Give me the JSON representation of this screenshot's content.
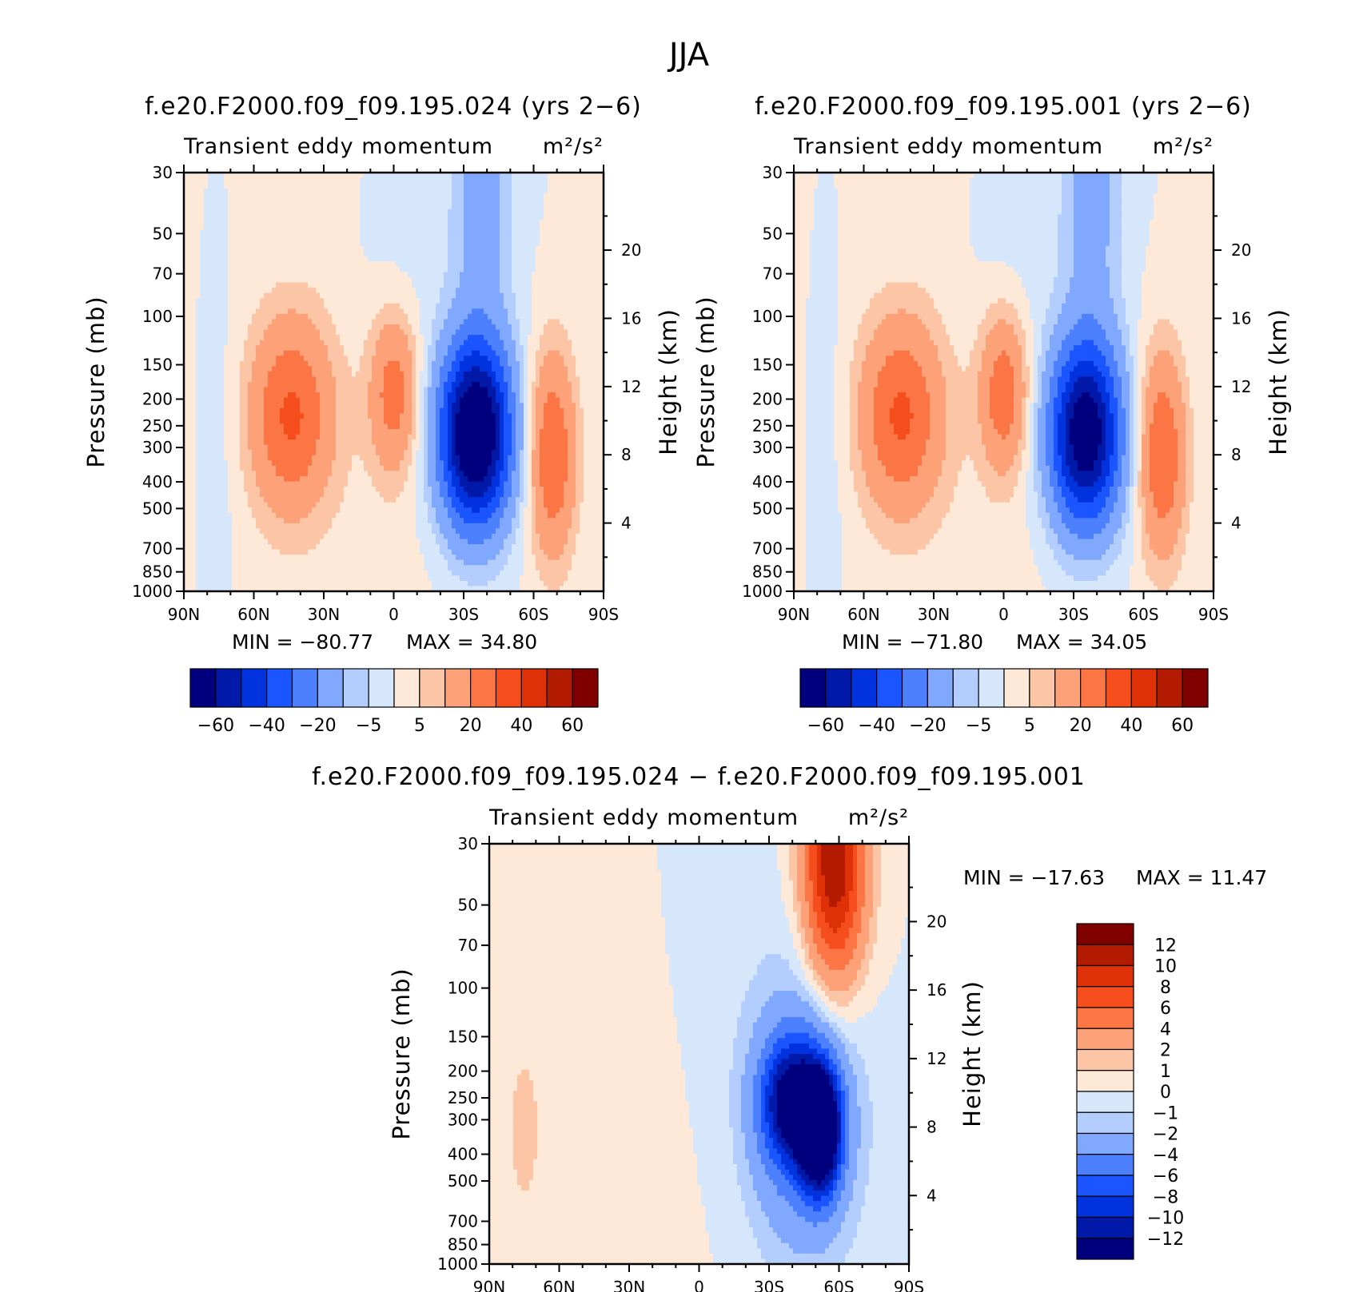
{
  "figure": {
    "title": "JJA"
  },
  "chart_data": [
    {
      "type": "contour",
      "title": "f.e20.F2000.f09_f09.195.024 (yrs 2−6)",
      "subtitle": "Transient eddy momentum",
      "units_label": "m²/s²",
      "xlabel": "",
      "ylabel": "Pressure (mb)",
      "ylabel_right": "Height (km)",
      "x_ticks": [
        "90N",
        "60N",
        "30N",
        "0",
        "30S",
        "60S",
        "90S"
      ],
      "y_ticks": [
        30,
        50,
        70,
        100,
        150,
        200,
        250,
        300,
        400,
        500,
        700,
        850,
        1000
      ],
      "right_ticks": [
        4,
        8,
        12,
        16,
        20
      ],
      "ylim": [
        1000,
        30
      ],
      "xlim": [
        90,
        -90
      ],
      "min_label": "MIN = −80.77",
      "max_label": "MAX =  34.80",
      "min": -80.77,
      "max": 34.8,
      "features": [
        {
          "lat": 43,
          "p": 230,
          "value": 30
        },
        {
          "lat": 0,
          "p": 200,
          "value": 25
        },
        {
          "lat": -36,
          "p": 270,
          "value": -80.77
        },
        {
          "lat": -68,
          "p": 310,
          "value": 30
        }
      ]
    },
    {
      "type": "contour",
      "title": "f.e20.F2000.f09_f09.195.001 (yrs 2−6)",
      "subtitle": "Transient eddy momentum",
      "units_label": "m²/s²",
      "xlabel": "",
      "ylabel": "Pressure (mb)",
      "ylabel_right": "Height (km)",
      "x_ticks": [
        "90N",
        "60N",
        "30N",
        "0",
        "30S",
        "60S",
        "90S"
      ],
      "y_ticks": [
        30,
        50,
        70,
        100,
        150,
        200,
        250,
        300,
        400,
        500,
        700,
        850,
        1000
      ],
      "right_ticks": [
        4,
        8,
        12,
        16,
        20
      ],
      "ylim": [
        1000,
        30
      ],
      "xlim": [
        90,
        -90
      ],
      "min_label": "MIN = −71.80",
      "max_label": "MAX =  34.05",
      "min": -71.8,
      "max": 34.05,
      "features": [
        {
          "lat": 45,
          "p": 230,
          "value": 30
        },
        {
          "lat": 0,
          "p": 180,
          "value": 25
        },
        {
          "lat": -36,
          "p": 270,
          "value": -71.8
        },
        {
          "lat": -68,
          "p": 310,
          "value": 30
        }
      ]
    },
    {
      "type": "contour",
      "title": "f.e20.F2000.f09_f09.195.024 − f.e20.F2000.f09_f09.195.001",
      "subtitle": "Transient eddy momentum",
      "units_label": "m²/s²",
      "xlabel": "",
      "ylabel": "Pressure (mb)",
      "ylabel_right": "Height (km)",
      "x_ticks": [
        "90N",
        "60N",
        "30N",
        "0",
        "30S",
        "60S",
        "90S"
      ],
      "y_ticks": [
        30,
        50,
        70,
        100,
        150,
        200,
        250,
        300,
        400,
        500,
        700,
        850,
        1000
      ],
      "right_ticks": [
        4,
        8,
        12,
        16,
        20
      ],
      "ylim": [
        1000,
        30
      ],
      "xlim": [
        90,
        -90
      ],
      "min_label": "MIN = −17.63",
      "max_label": "MAX =  11.47",
      "min": -17.63,
      "max": 11.47,
      "features": [
        {
          "lat": -60,
          "p": 35,
          "value": 11.47
        },
        {
          "lat": -40,
          "p": 260,
          "value": -12
        },
        {
          "lat": -52,
          "p": 330,
          "value": -17.63
        }
      ]
    }
  ],
  "colorbars": {
    "top": {
      "labels": [
        "−60",
        "−40",
        "−20",
        "−5",
        "5",
        "20",
        "40",
        "60"
      ],
      "colors": [
        "#00007e",
        "#0019a8",
        "#0033dd",
        "#1a55ff",
        "#4c80ff",
        "#80a8ff",
        "#b3cdff",
        "#d6e6fb",
        "#fee8d8",
        "#fcc6a6",
        "#fca178",
        "#fc7545",
        "#f64d1c",
        "#de3107",
        "#b31b00",
        "#800000"
      ]
    },
    "bottom": {
      "labels": [
        "12",
        "10",
        "8",
        "6",
        "4",
        "2",
        "1",
        "0",
        "−1",
        "−2",
        "−4",
        "−6",
        "−8",
        "−10",
        "−12"
      ],
      "colors": [
        "#800000",
        "#b31b00",
        "#de3107",
        "#f64d1c",
        "#fc7545",
        "#fca178",
        "#fcc6a6",
        "#fee8d8",
        "#d6e6fb",
        "#b3cdff",
        "#80a8ff",
        "#4c80ff",
        "#1a55ff",
        "#0033dd",
        "#0019a8",
        "#00007e"
      ]
    }
  }
}
